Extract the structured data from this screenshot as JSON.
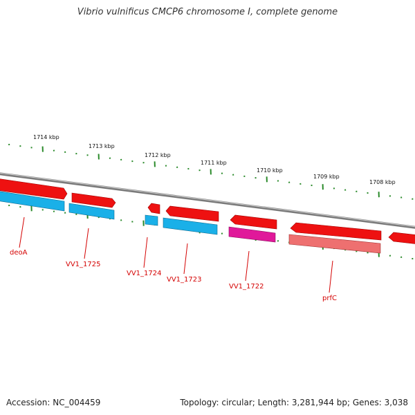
{
  "title": "Vibrio vulnificus CMCP6 chromosome I, complete genome",
  "footer": {
    "accession": "Accession: NC_004459",
    "summary": "Topology: circular; Length: 3,281,944 bp; Genes: 3,038"
  },
  "scale": {
    "ticks": [
      "1714 kbp",
      "1713 kbp",
      "1712 kbp",
      "1711 kbp",
      "1710 kbp",
      "1709 kbp",
      "1708 kbp"
    ]
  },
  "gene_labels": [
    "deoA",
    "VV1_1725",
    "VV1_1724",
    "VV1_1723",
    "VV1_1722",
    "prfC"
  ],
  "colors": {
    "cds": "#ee1111",
    "cds_alt": "#ee7070",
    "gene_blue": "#1ab0e8",
    "gene_magenta": "#e0199a",
    "backbone": "#7a7a7a",
    "tick": "#2a8a2a",
    "label": "#d40000"
  }
}
